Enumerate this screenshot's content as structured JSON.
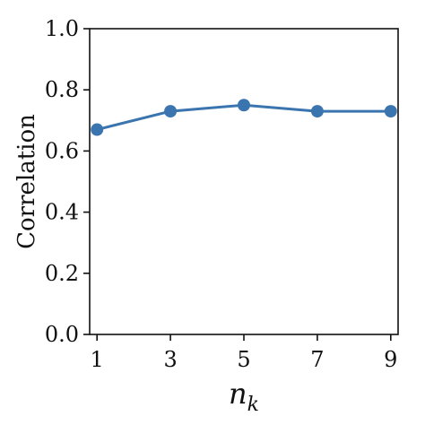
{
  "chart_data": {
    "type": "line",
    "x": [
      1,
      3,
      5,
      7,
      9
    ],
    "series": [
      {
        "values": [
          0.67,
          0.73,
          0.75,
          0.73,
          0.73
        ]
      }
    ],
    "xlabel_main": "n",
    "xlabel_sub": "k",
    "ylabel": "Correlation",
    "xticks": [
      "1",
      "3",
      "5",
      "7",
      "9"
    ],
    "yticks": [
      "0.0",
      "0.2",
      "0.4",
      "0.6",
      "0.8",
      "1.0"
    ],
    "ylim": [
      0.0,
      1.0
    ],
    "xlim": [
      0.8,
      9.2
    ],
    "grid": false,
    "color": "#3b75af"
  }
}
